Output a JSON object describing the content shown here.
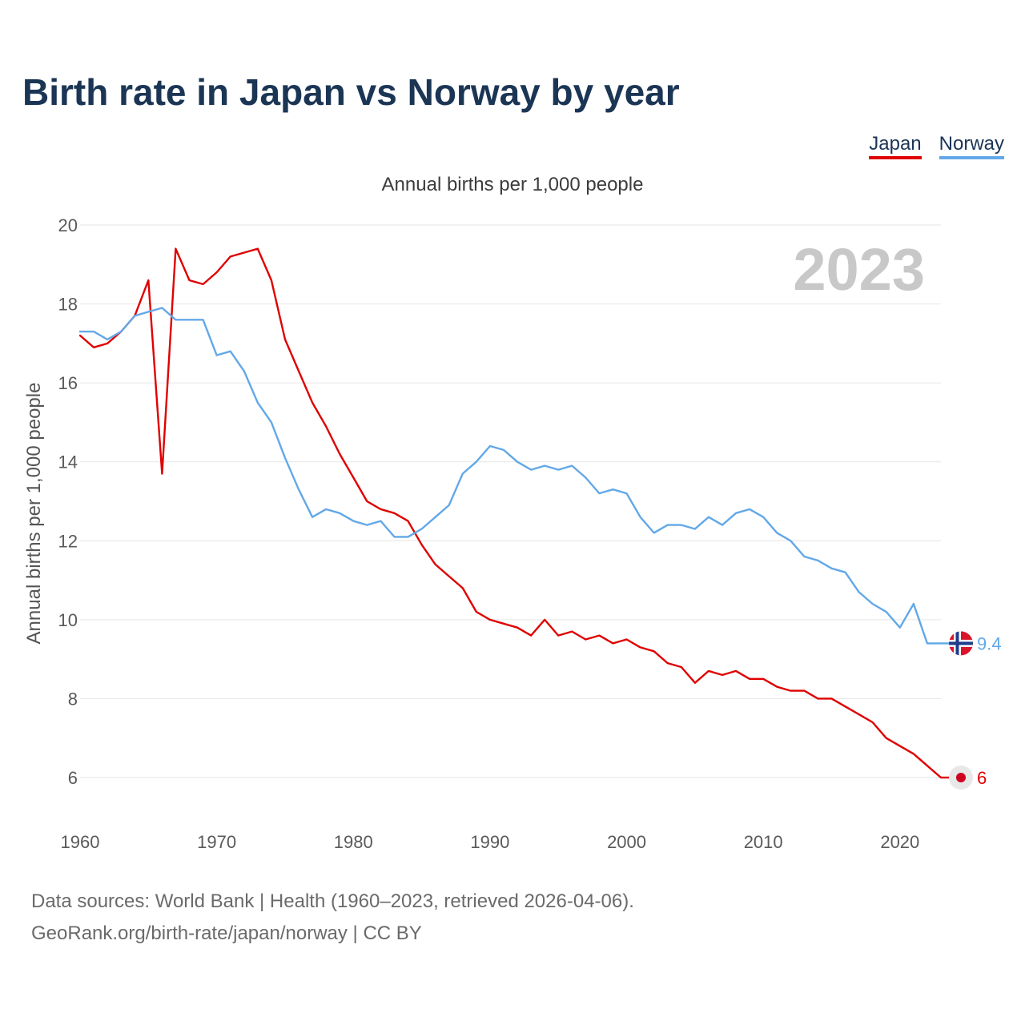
{
  "title": "Birth rate in Japan vs Norway by year",
  "legend": [
    {
      "label": "Japan",
      "color": "#e00000"
    },
    {
      "label": "Norway",
      "color": "#62a8e8"
    }
  ],
  "subtitle": "Annual births per 1,000 people",
  "year_watermark": "2023",
  "footer": {
    "line1": "Data sources: World Bank | Health (1960–2023, retrieved 2026-04-06).",
    "line2": "GeoRank.org/birth-rate/japan/norway | CC BY"
  },
  "chart_data": {
    "type": "line",
    "title": "Birth rate in Japan vs Norway by year",
    "xlabel": "",
    "ylabel": "Annual births per 1,000 people",
    "xlim": [
      1960,
      2023
    ],
    "ylim": [
      6,
      20
    ],
    "x_ticks": [
      1960,
      1970,
      1980,
      1990,
      2000,
      2010,
      2020
    ],
    "y_ticks": [
      6,
      8,
      10,
      12,
      14,
      16,
      18,
      20
    ],
    "grid": true,
    "legend_position": "top-right",
    "x": [
      1960,
      1961,
      1962,
      1963,
      1964,
      1965,
      1966,
      1967,
      1968,
      1969,
      1970,
      1971,
      1972,
      1973,
      1974,
      1975,
      1976,
      1977,
      1978,
      1979,
      1980,
      1981,
      1982,
      1983,
      1984,
      1985,
      1986,
      1987,
      1988,
      1989,
      1990,
      1991,
      1992,
      1993,
      1994,
      1995,
      1996,
      1997,
      1998,
      1999,
      2000,
      2001,
      2002,
      2003,
      2004,
      2005,
      2006,
      2007,
      2008,
      2009,
      2010,
      2011,
      2012,
      2013,
      2014,
      2015,
      2016,
      2017,
      2018,
      2019,
      2020,
      2021,
      2022,
      2023
    ],
    "series": [
      {
        "name": "Japan",
        "color": "#e00000",
        "end_label": "6",
        "flag": "japan-flag-icon",
        "values": [
          17.2,
          16.9,
          17.0,
          17.3,
          17.7,
          18.6,
          13.7,
          19.4,
          18.6,
          18.5,
          18.8,
          19.2,
          19.3,
          19.4,
          18.6,
          17.1,
          16.3,
          15.5,
          14.9,
          14.2,
          13.6,
          13.0,
          12.8,
          12.7,
          12.5,
          11.9,
          11.4,
          11.1,
          10.8,
          10.2,
          10.0,
          9.9,
          9.8,
          9.6,
          10.0,
          9.6,
          9.7,
          9.5,
          9.6,
          9.4,
          9.5,
          9.3,
          9.2,
          8.9,
          8.8,
          8.4,
          8.7,
          8.6,
          8.7,
          8.5,
          8.5,
          8.3,
          8.2,
          8.2,
          8.0,
          8.0,
          7.8,
          7.6,
          7.4,
          7.0,
          6.8,
          6.6,
          6.3,
          6.0
        ]
      },
      {
        "name": "Norway",
        "color": "#62a8e8",
        "end_label": "9.4",
        "flag": "norway-flag-icon",
        "values": [
          17.3,
          17.3,
          17.1,
          17.3,
          17.7,
          17.8,
          17.9,
          17.6,
          17.6,
          17.6,
          16.7,
          16.8,
          16.3,
          15.5,
          15.0,
          14.1,
          13.3,
          12.6,
          12.8,
          12.7,
          12.5,
          12.4,
          12.5,
          12.1,
          12.1,
          12.3,
          12.6,
          12.9,
          13.7,
          14.0,
          14.4,
          14.3,
          14.0,
          13.8,
          13.9,
          13.8,
          13.9,
          13.6,
          13.2,
          13.3,
          13.2,
          12.6,
          12.2,
          12.4,
          12.4,
          12.3,
          12.6,
          12.4,
          12.7,
          12.8,
          12.6,
          12.2,
          12.0,
          11.6,
          11.5,
          11.3,
          11.2,
          10.7,
          10.4,
          10.2,
          9.8,
          10.4,
          9.4,
          9.4
        ]
      }
    ]
  }
}
